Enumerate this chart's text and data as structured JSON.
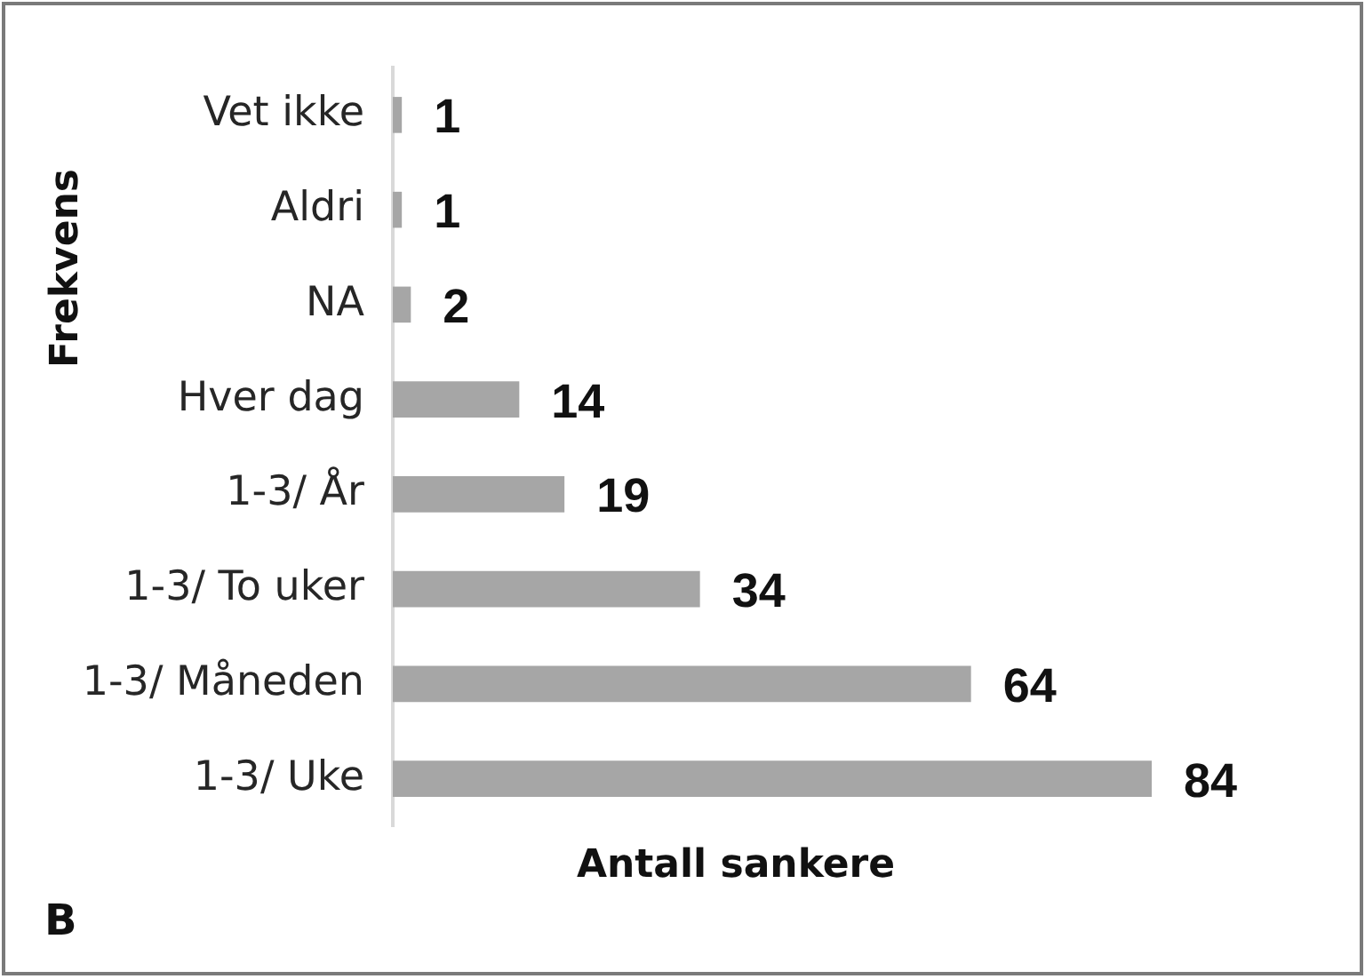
{
  "chart_data": {
    "type": "bar",
    "orientation": "horizontal",
    "categories": [
      "Vet ikke",
      "Aldri",
      "NA",
      "Hver dag",
      "1-3/ År",
      "1-3/ To uker",
      "1-3/ Måneden",
      "1-3/ Uke"
    ],
    "values": [
      1,
      1,
      2,
      14,
      19,
      34,
      64,
      84
    ],
    "color": "#a6a6a6",
    "xlabel": "Antall sankere",
    "ylabel": "Frekvens",
    "annotations": [
      "B"
    ],
    "data_labels": true,
    "tick_labels": "y"
  }
}
